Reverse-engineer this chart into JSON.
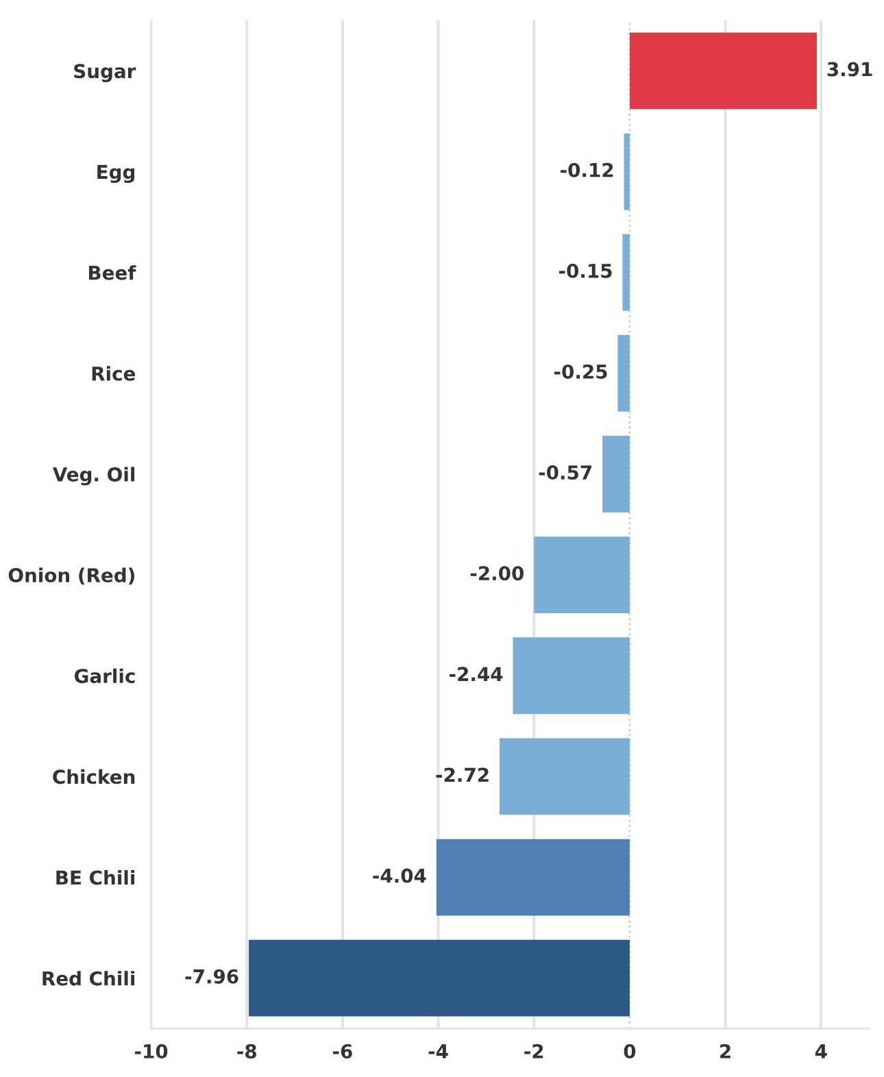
{
  "chart_data": {
    "type": "bar",
    "orientation": "horizontal",
    "categories": [
      "Sugar",
      "Egg",
      "Beef",
      "Rice",
      "Veg. Oil",
      "Onion (Red)",
      "Garlic",
      "Chicken",
      "BE Chili",
      "Red Chili"
    ],
    "values": [
      3.91,
      -0.12,
      -0.15,
      -0.25,
      -0.57,
      -2.0,
      -2.44,
      -2.72,
      -4.04,
      -7.96
    ],
    "value_labels": [
      "3.91",
      "-0.12",
      "-0.15",
      "-0.25",
      "-0.57",
      "-2.00",
      "-2.44",
      "-2.72",
      "-4.04",
      "-7.96"
    ],
    "colors": [
      "#e03a46",
      "#7aaed6",
      "#7aaed6",
      "#7aaed6",
      "#7aaed6",
      "#7aaed6",
      "#7aaed6",
      "#7aaed6",
      "#4f80b1",
      "#2c5986"
    ],
    "xlim": [
      -10,
      5
    ],
    "xticks": [
      -10,
      -8,
      -6,
      -4,
      -2,
      0,
      2,
      4
    ],
    "grid": "x",
    "ref_lines": [
      {
        "axis": "x",
        "value": 0,
        "line_style": "dotted",
        "color": "#c8c8c8"
      }
    ]
  }
}
